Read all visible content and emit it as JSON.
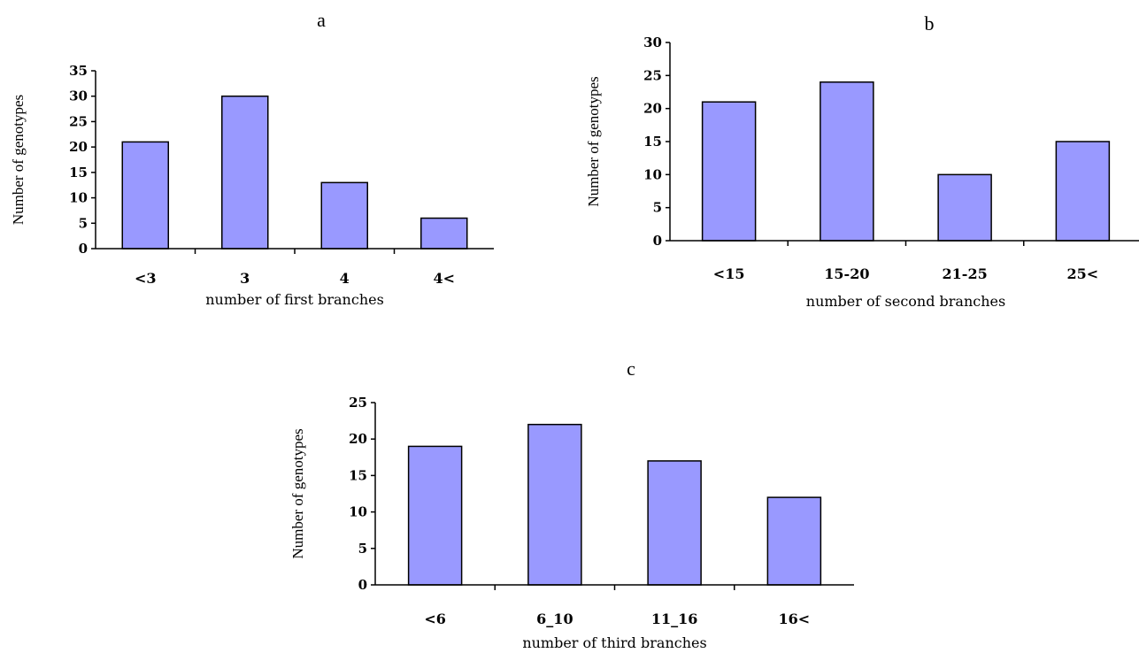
{
  "chart_data": [
    {
      "type": "bar",
      "panel_label": "a",
      "categories": [
        "<3",
        "3",
        "4",
        "4<"
      ],
      "values": [
        21,
        30,
        13,
        6
      ],
      "xlabel": "number of first branches",
      "ylabel": "Number of genotypes",
      "ylim": [
        0,
        35
      ],
      "yticks": [
        0,
        5,
        10,
        15,
        20,
        25,
        30,
        35
      ],
      "bar_color": "#9999ff"
    },
    {
      "type": "bar",
      "panel_label": "b",
      "categories": [
        "<15",
        "15-20",
        "21-25",
        "25<"
      ],
      "values": [
        21,
        24,
        10,
        15
      ],
      "xlabel": "number of second branches",
      "ylabel": "Number of genotypes",
      "ylim": [
        0,
        30
      ],
      "yticks": [
        0,
        5,
        10,
        15,
        20,
        25,
        30
      ],
      "bar_color": "#9999ff"
    },
    {
      "type": "bar",
      "panel_label": "c",
      "categories": [
        "<6",
        "6_10",
        "11_16",
        "16<"
      ],
      "values": [
        19,
        22,
        17,
        12
      ],
      "xlabel": "number of third branches",
      "ylabel": "Number of genotypes",
      "ylim": [
        0,
        25
      ],
      "yticks": [
        0,
        5,
        10,
        15,
        20,
        25
      ],
      "bar_color": "#9999ff"
    }
  ]
}
